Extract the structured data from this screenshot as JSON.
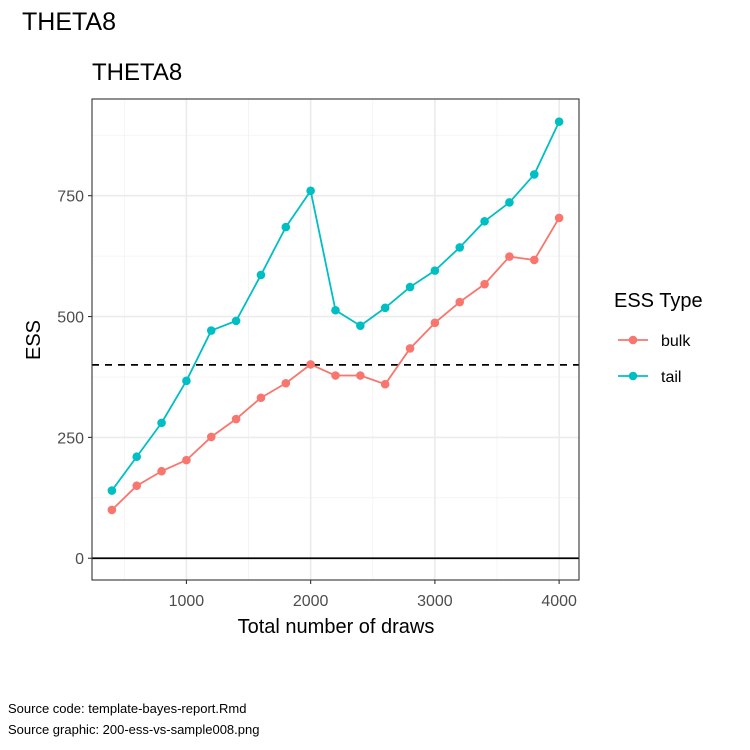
{
  "page": {
    "title": "THETA8",
    "footer": {
      "source_code": "Source code: template-bayes-report.Rmd",
      "source_graphic": "Source graphic: 200-ess-vs-sample008.png"
    }
  },
  "chart_data": {
    "type": "line",
    "title": "THETA8",
    "xlabel": "Total number of draws",
    "ylabel": "ESS",
    "xlim": [
      240,
      4160
    ],
    "ylim": [
      -45,
      950
    ],
    "x_ticks": [
      1000,
      2000,
      3000,
      4000
    ],
    "y_ticks": [
      0,
      250,
      500,
      750
    ],
    "x": [
      400,
      600,
      800,
      1000,
      1200,
      1400,
      1600,
      1800,
      2000,
      2200,
      2400,
      2600,
      2800,
      3000,
      3200,
      3400,
      3600,
      3800,
      4000
    ],
    "series": [
      {
        "name": "bulk",
        "color": "#F8766D",
        "values": [
          100,
          150,
          180,
          203,
          251,
          288,
          332,
          362,
          401,
          378,
          378,
          360,
          434,
          487,
          530,
          567,
          624,
          617,
          704
        ]
      },
      {
        "name": "tail",
        "color": "#00BFC4",
        "values": [
          140,
          210,
          280,
          367,
          471,
          491,
          586,
          685,
          760,
          513,
          481,
          518,
          561,
          595,
          643,
          697,
          736,
          794,
          903
        ]
      }
    ],
    "reference_lines": [
      {
        "y": 400,
        "style": "dashed"
      },
      {
        "y": 0,
        "style": "solid"
      }
    ],
    "legend": {
      "title": "ESS Type",
      "position": "right"
    },
    "grid": true
  }
}
